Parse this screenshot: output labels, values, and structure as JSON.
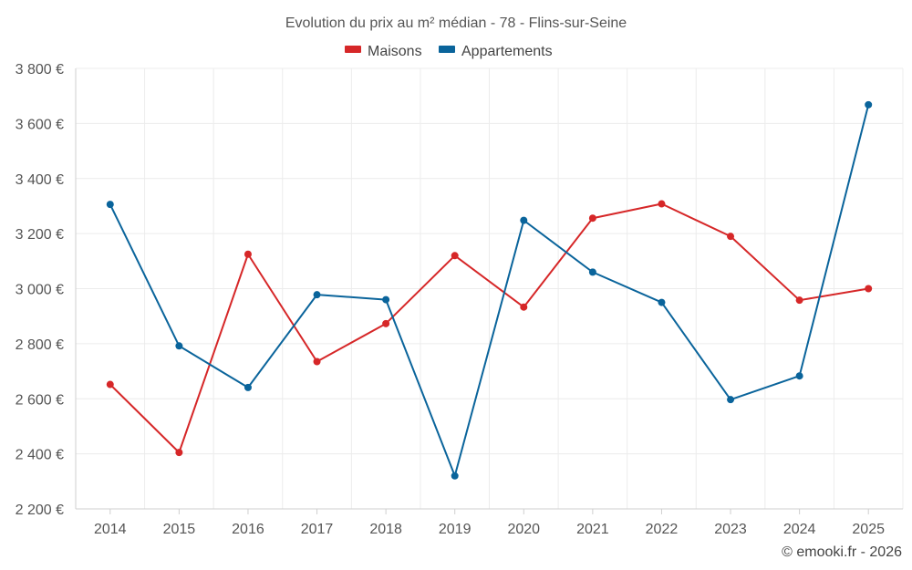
{
  "chart_data": {
    "type": "line",
    "title": "Evolution du prix au m² médian - 78 - Flins-sur-Seine",
    "categories": [
      "2014",
      "2015",
      "2016",
      "2017",
      "2018",
      "2019",
      "2020",
      "2021",
      "2022",
      "2023",
      "2024",
      "2025"
    ],
    "series": [
      {
        "name": "Maisons",
        "color": "#d62728",
        "values": [
          2652,
          2405,
          3125,
          2735,
          2873,
          3120,
          2933,
          3256,
          3308,
          3190,
          2958,
          3000
        ]
      },
      {
        "name": "Appartements",
        "color": "#0a649b",
        "values": [
          3306,
          2792,
          2641,
          2978,
          2960,
          2320,
          3248,
          3060,
          2950,
          2597,
          2683,
          3668
        ]
      }
    ],
    "ylim": [
      2200,
      3800
    ],
    "yticks": [
      2200,
      2400,
      2600,
      2800,
      3000,
      3200,
      3400,
      3600,
      3800
    ],
    "ytick_labels": [
      "2 200 €",
      "2 400 €",
      "2 600 €",
      "2 800 €",
      "3 000 €",
      "3 200 €",
      "3 400 €",
      "3 600 €",
      "3 800 €"
    ],
    "grid": true,
    "legend_position": "top-center",
    "credit": "© emooki.fr - 2026"
  }
}
